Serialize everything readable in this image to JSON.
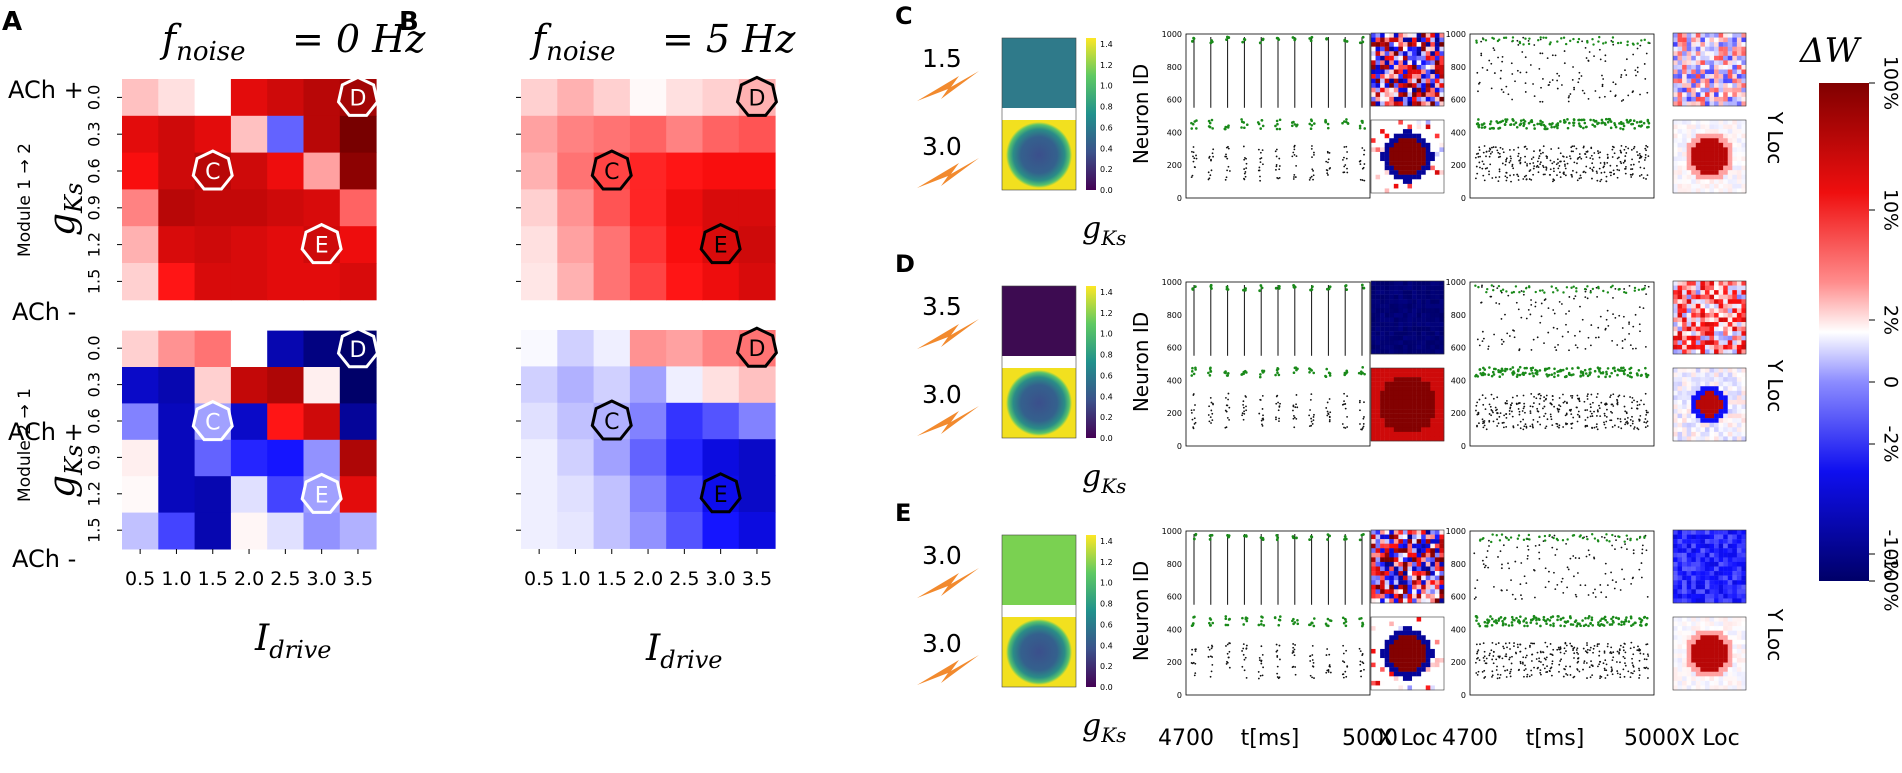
{
  "chart_data": {
    "type": "heatmap",
    "panels": {
      "A": {
        "letter": "A",
        "title": "f",
        "title_sub": "noise",
        "title_rest": " = 0 Hz",
        "x_label": "I",
        "x_label_sub": "drive",
        "x_ticks": [
          "0.5",
          "1.0",
          "1.5",
          "2.0",
          "2.5",
          "3.0",
          "3.5"
        ],
        "y_ticks": [
          "0.0",
          "0.3",
          "0.6",
          "0.9",
          "1.2",
          "1.5"
        ],
        "ach_top": "ACh +",
        "ach_bottom": "ACh -",
        "y_axis": "g",
        "y_axis_sub": "Ks",
        "top_module": "Module 1 → 2",
        "bottom_module": "Module 2 → 1",
        "top_grid": [
          [
            0.2,
            0.1,
            0.0,
            0.9,
            1.0,
            1.1,
            1.2
          ],
          [
            0.9,
            1.0,
            0.9,
            0.2,
            -0.5,
            1.1,
            1.4
          ],
          [
            0.8,
            1.0,
            1.1,
            1.0,
            0.85,
            0.3,
            1.3
          ],
          [
            0.4,
            1.1,
            1.05,
            1.05,
            1.0,
            0.95,
            0.5
          ],
          [
            0.25,
            0.95,
            1.0,
            0.95,
            0.9,
            1.0,
            0.85
          ],
          [
            0.15,
            0.75,
            0.95,
            0.95,
            0.9,
            0.9,
            0.95
          ]
        ],
        "bottom_grid": [
          [
            0.15,
            0.35,
            0.45,
            0.0,
            -1.1,
            -1.3,
            -1.4
          ],
          [
            -1.0,
            -1.1,
            0.15,
            1.05,
            1.15,
            0.05,
            -1.4
          ],
          [
            -0.4,
            -1.05,
            -0.3,
            -1.0,
            0.75,
            1.0,
            -1.2
          ],
          [
            0.05,
            -1.05,
            -0.5,
            -0.7,
            -0.75,
            -0.35,
            1.15
          ],
          [
            0.02,
            -1.05,
            -1.1,
            -0.1,
            -0.6,
            -0.3,
            0.9
          ],
          [
            -0.2,
            -0.6,
            -1.1,
            0.03,
            -0.1,
            -0.35,
            -0.25
          ]
        ],
        "markers_top": [
          {
            "label": "D",
            "col": 6,
            "row": 0
          },
          {
            "label": "C",
            "col": 2,
            "row": 2
          },
          {
            "label": "E",
            "col": 5,
            "row": 4
          }
        ],
        "markers_bottom": [
          {
            "label": "D",
            "col": 6,
            "row": 0
          },
          {
            "label": "C",
            "col": 2,
            "row": 2
          },
          {
            "label": "E",
            "col": 5,
            "row": 4
          }
        ]
      },
      "B": {
        "letter": "B",
        "title": "f",
        "title_sub": "noise",
        "title_rest": " = 5 Hz",
        "x_label": "I",
        "x_label_sub": "drive",
        "x_ticks": [
          "0.5",
          "1.0",
          "1.5",
          "2.0",
          "2.5",
          "3.0",
          "3.5"
        ],
        "top_grid": [
          [
            0.15,
            0.25,
            0.15,
            0.02,
            0.1,
            0.15,
            0.25
          ],
          [
            0.3,
            0.4,
            0.45,
            0.5,
            0.4,
            0.5,
            0.55
          ],
          [
            0.25,
            0.45,
            0.6,
            0.7,
            0.75,
            0.8,
            0.8
          ],
          [
            0.15,
            0.35,
            0.55,
            0.7,
            0.85,
            0.95,
            0.95
          ],
          [
            0.1,
            0.3,
            0.45,
            0.65,
            0.8,
            0.95,
            1.0
          ],
          [
            0.08,
            0.25,
            0.45,
            0.6,
            0.75,
            0.85,
            0.95
          ]
        ],
        "bottom_grid": [
          [
            -0.02,
            -0.15,
            -0.05,
            0.35,
            0.3,
            0.4,
            0.45
          ],
          [
            -0.15,
            -0.25,
            -0.15,
            -0.3,
            -0.05,
            0.1,
            0.2
          ],
          [
            -0.1,
            -0.2,
            -0.25,
            -0.4,
            -0.65,
            -0.55,
            -0.4
          ],
          [
            -0.05,
            -0.15,
            -0.3,
            -0.5,
            -0.7,
            -0.9,
            -1.0
          ],
          [
            -0.05,
            -0.1,
            -0.2,
            -0.4,
            -0.6,
            -0.85,
            -1.0
          ],
          [
            -0.05,
            -0.08,
            -0.2,
            -0.35,
            -0.55,
            -0.75,
            -0.9
          ]
        ],
        "markers_top": [
          {
            "label": "D",
            "col": 6,
            "row": 0
          },
          {
            "label": "C",
            "col": 2,
            "row": 2
          },
          {
            "label": "E",
            "col": 5,
            "row": 4
          }
        ],
        "markers_bottom": [
          {
            "label": "D",
            "col": 6,
            "row": 0
          },
          {
            "label": "C",
            "col": 2,
            "row": 2
          },
          {
            "label": "E",
            "col": 5,
            "row": 4
          }
        ]
      },
      "rows": [
        {
          "letter": "C",
          "stim_top": "1.5",
          "stim_bottom": "3.0",
          "top_map": "teal",
          "bottom_map": "circle",
          "top_w1": "mixed",
          "bottom_w1": "circle-deep",
          "top_w2": "mixed-light",
          "bottom_w2": "circle-light",
          "sync": "high",
          "pattern1": "sync",
          "pattern2": "async"
        },
        {
          "letter": "D",
          "stim_top": "3.5",
          "stim_bottom": "3.0",
          "top_map": "purple",
          "bottom_map": "circle",
          "top_w1": "dark-blue",
          "bottom_w1": "big-circle",
          "top_w2": "mixed-red",
          "bottom_w2": "circle-small",
          "sync": "high",
          "pattern1": "sync",
          "pattern2": "async"
        },
        {
          "letter": "E",
          "stim_top": "3.0",
          "stim_bottom": "3.0",
          "top_map": "green",
          "bottom_map": "circle",
          "top_w1": "mixed",
          "bottom_w1": "circle-deep",
          "top_w2": "blue",
          "bottom_w2": "circle-light",
          "sync": "high",
          "pattern1": "sync",
          "pattern2": "async"
        }
      ],
      "raster": {
        "y_label": "Neuron ID",
        "y_ticks": [
          "0",
          "200",
          "400",
          "600",
          "800",
          "1000"
        ],
        "x_start": "4700",
        "x_mid": "t[ms]",
        "x_end": "5000",
        "x_loc": "X Loc",
        "y_loc": "Y Loc",
        "gks_label": "g",
        "gks_sub": "Ks",
        "cbar_ticks": [
          "1.4",
          "1.2",
          "1.0",
          "0.8",
          "0.6",
          "0.4",
          "0.2",
          "0.0"
        ]
      },
      "colorbar": {
        "title": "ΔW",
        "ticks": [
          "100%",
          "10%",
          "2%",
          "0",
          "-2%",
          "-10%",
          "-100%"
        ]
      }
    }
  }
}
